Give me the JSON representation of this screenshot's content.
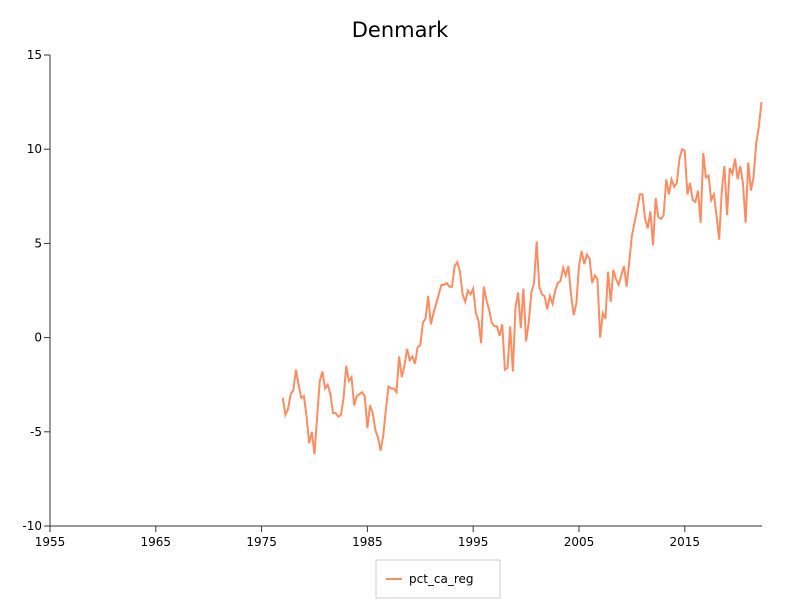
{
  "chart_data": {
    "type": "line",
    "title": "Denmark",
    "x": [
      1977,
      1977.25,
      1977.5,
      1977.75,
      1978,
      1978.25,
      1978.5,
      1978.75,
      1979,
      1979.25,
      1979.5,
      1979.75,
      1980,
      1980.25,
      1980.5,
      1980.75,
      1981,
      1981.25,
      1981.5,
      1981.75,
      1982,
      1982.25,
      1982.5,
      1982.75,
      1983,
      1983.25,
      1983.5,
      1983.75,
      1984,
      1984.25,
      1984.5,
      1984.75,
      1985,
      1985.25,
      1985.5,
      1985.75,
      1986,
      1986.25,
      1986.5,
      1986.75,
      1987,
      1987.25,
      1987.5,
      1987.75,
      1988,
      1988.25,
      1988.5,
      1988.75,
      1989,
      1989.25,
      1989.5,
      1989.75,
      1990,
      1990.25,
      1990.5,
      1990.75,
      1991,
      1991.25,
      1991.5,
      1991.75,
      1992,
      1992.25,
      1992.5,
      1992.75,
      1993,
      1993.25,
      1993.5,
      1993.75,
      1994,
      1994.25,
      1994.5,
      1994.75,
      1995,
      1995.25,
      1995.5,
      1995.75,
      1996,
      1996.25,
      1996.5,
      1996.75,
      1997,
      1997.25,
      1997.5,
      1997.75,
      1998,
      1998.25,
      1998.5,
      1998.75,
      1999,
      1999.25,
      1999.5,
      1999.75,
      2000,
      2000.25,
      2000.5,
      2000.75,
      2001,
      2001.25,
      2001.5,
      2001.75,
      2002,
      2002.25,
      2002.5,
      2002.75,
      2003,
      2003.25,
      2003.5,
      2003.75,
      2004,
      2004.25,
      2004.5,
      2004.75,
      2005,
      2005.25,
      2005.5,
      2005.75,
      2006,
      2006.25,
      2006.5,
      2006.75,
      2007,
      2007.25,
      2007.5,
      2007.75,
      2008,
      2008.25,
      2008.5,
      2008.75,
      2009,
      2009.25,
      2009.5,
      2009.75,
      2010,
      2010.25,
      2010.5,
      2010.75,
      2011,
      2011.25,
      2011.5,
      2011.75,
      2012,
      2012.25,
      2012.5,
      2012.75,
      2013,
      2013.25,
      2013.5,
      2013.75,
      2014,
      2014.25,
      2014.5,
      2014.75,
      2015,
      2015.25,
      2015.5,
      2015.75,
      2016,
      2016.25,
      2016.5,
      2016.75,
      2017,
      2017.25,
      2017.5,
      2017.75,
      2018,
      2018.25,
      2018.5,
      2018.75,
      2019,
      2019.25,
      2019.5,
      2019.75,
      2020,
      2020.25,
      2020.5,
      2020.75,
      2021,
      2021.25,
      2021.5,
      2021.75,
      2022,
      2022.25
    ],
    "series": [
      {
        "name": "pct_ca_reg",
        "color": "#fc8d62",
        "values": [
          -3.2,
          -4.1,
          -3.8,
          -3.0,
          -2.8,
          -1.7,
          -2.5,
          -3.2,
          -3.1,
          -4.2,
          -5.6,
          -5.0,
          -6.2,
          -4.2,
          -2.3,
          -1.8,
          -2.7,
          -2.5,
          -3.0,
          -4.0,
          -4.0,
          -4.2,
          -4.1,
          -3.2,
          -1.5,
          -2.3,
          -2.1,
          -3.6,
          -3.1,
          -3.0,
          -2.9,
          -3.1,
          -4.8,
          -3.6,
          -4.0,
          -4.9,
          -5.3,
          -6.0,
          -5.2,
          -3.8,
          -2.6,
          -2.7,
          -2.7,
          -2.9,
          -1.0,
          -2.1,
          -1.5,
          -0.6,
          -1.2,
          -1.0,
          -1.4,
          -0.5,
          -0.4,
          0.8,
          1.0,
          2.2,
          0.7,
          1.3,
          1.8,
          2.3,
          2.8,
          2.8,
          2.9,
          2.7,
          2.7,
          3.8,
          4.0,
          3.5,
          2.3,
          1.9,
          2.5,
          2.3,
          2.6,
          1.3,
          0.9,
          -0.3,
          2.7,
          2.0,
          1.5,
          0.8,
          0.6,
          0.6,
          0.1,
          0.7,
          -1.7,
          -1.6,
          0.6,
          -1.8,
          1.6,
          2.4,
          0.5,
          2.6,
          -0.2,
          0.8,
          2.4,
          2.9,
          5.1,
          2.7,
          2.3,
          2.2,
          1.5,
          2.2,
          1.8,
          2.5,
          2.9,
          3.0,
          3.7,
          3.3,
          3.8,
          2.3,
          1.2,
          1.8,
          3.8,
          4.6,
          3.9,
          4.4,
          4.2,
          2.9,
          3.3,
          3.1,
          0.0,
          1.3,
          1.0,
          3.5,
          1.9,
          3.6,
          3.1,
          2.8,
          3.3,
          3.8,
          2.7,
          4.0,
          5.4,
          6.1,
          6.8,
          7.6,
          7.6,
          6.3,
          5.8,
          6.7,
          4.9,
          7.4,
          6.4,
          6.3,
          6.5,
          8.4,
          7.6,
          8.4,
          8.0,
          8.2,
          9.5,
          10.0,
          9.9,
          7.6,
          8.2,
          7.3,
          7.2,
          7.8,
          6.1,
          9.8,
          8.5,
          8.6,
          7.3,
          7.6,
          6.5,
          5.2,
          7.8,
          9.1,
          6.5,
          9.0,
          8.7,
          9.5,
          8.4,
          9.1,
          8.2,
          6.1,
          9.3,
          7.8,
          8.5,
          10.3,
          11.2,
          12.5
        ]
      }
    ],
    "xlim": [
      1955,
      2022.3
    ],
    "xticks": [
      1955,
      1965,
      1975,
      1985,
      1995,
      2005,
      2015
    ],
    "ylim": [
      -10,
      15
    ],
    "yticks": [
      -10,
      -5,
      0,
      5,
      10,
      15
    ],
    "grid": false
  }
}
